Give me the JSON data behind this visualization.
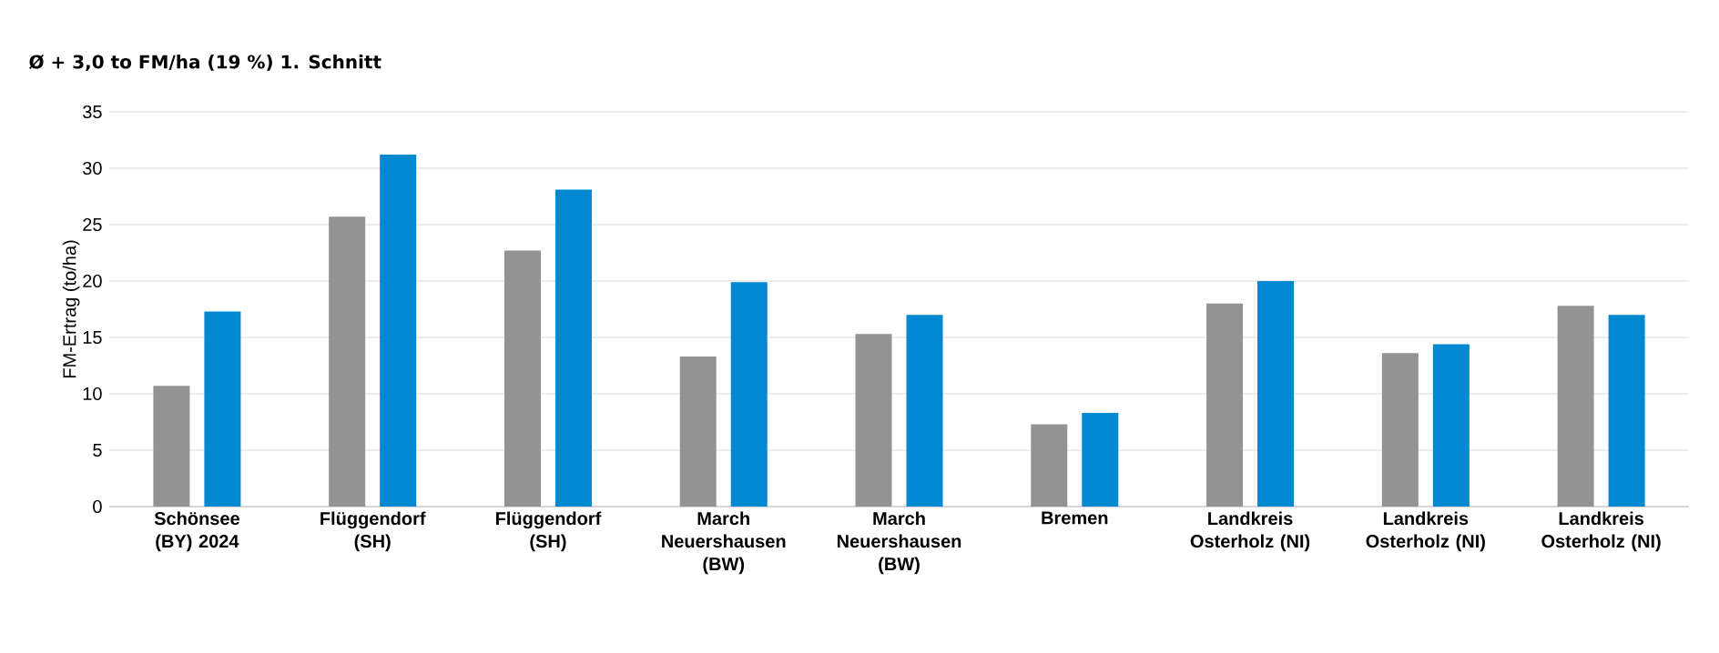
{
  "chart_data": {
    "type": "bar",
    "title": "Ø + 3,0 to FM/ha (19 %) 1. Schnitt",
    "ylabel": "FM-Ertrag (to/ha)",
    "categories": [
      "Schönsee (BY) 2024",
      "Flüggendorf (SH)",
      "Flüggendorf (SH)",
      "March Neuershausen (BW)",
      "March Neuershausen (BW)",
      "Bremen",
      "Landkreis Osterholz (NI)",
      "Landkreis Osterholz (NI)",
      "Landkreis Osterholz (NI)"
    ],
    "series": [
      {
        "color": "#939393",
        "values": [
          10.7,
          25.7,
          22.7,
          13.3,
          15.3,
          7.3,
          18.0,
          13.6,
          17.8
        ]
      },
      {
        "color": "#0088d1",
        "values": [
          17.3,
          31.2,
          28.1,
          19.9,
          17.0,
          8.3,
          20.0,
          14.4,
          17.0
        ]
      }
    ],
    "ylim": [
      0,
      35
    ],
    "yticks": [
      0,
      5,
      10,
      15,
      20,
      25,
      30,
      35
    ],
    "grid": "y"
  }
}
